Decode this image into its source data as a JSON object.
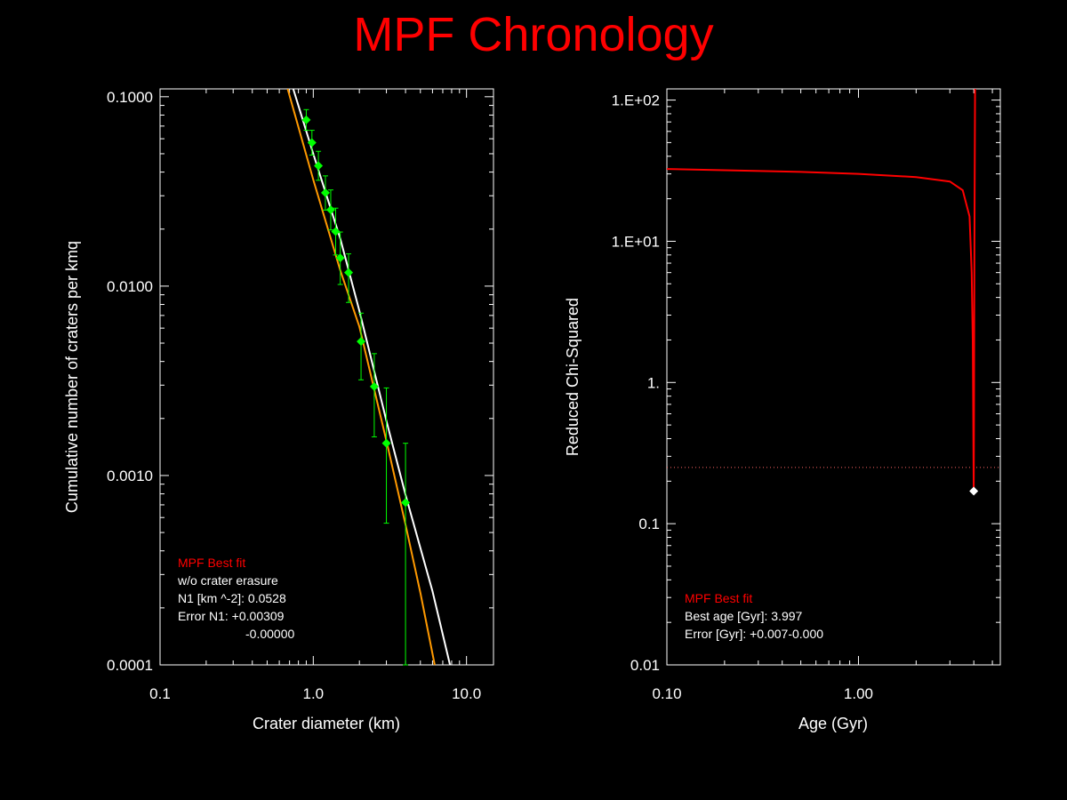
{
  "title": "MPF Chronology",
  "chart_data": [
    {
      "type": "scatter",
      "xlabel": "Crater diameter (km)",
      "ylabel": "Cumulative number of craters per kmq",
      "xscale": "log",
      "yscale": "log",
      "xlim": [
        0.1,
        15
      ],
      "ylim": [
        0.0001,
        0.11
      ],
      "xticks": [
        {
          "v": 0.1,
          "label": "0.1"
        },
        {
          "v": 1,
          "label": "1.0"
        },
        {
          "v": 10,
          "label": "10.0"
        }
      ],
      "yticks": [
        {
          "v": 0.0001,
          "label": "0.0001"
        },
        {
          "v": 0.001,
          "label": "0.0010"
        },
        {
          "v": 0.01,
          "label": "0.0100"
        },
        {
          "v": 0.1,
          "label": "0.1000"
        }
      ],
      "series": [
        {
          "kind": "points",
          "color": "#00ff00",
          "points": [
            {
              "x": 0.9,
              "y": 0.0755,
              "ylo": 0.0665,
              "yhi": 0.0855
            },
            {
              "x": 0.98,
              "y": 0.0572,
              "ylo": 0.0492,
              "yhi": 0.0665
            },
            {
              "x": 1.08,
              "y": 0.0432,
              "ylo": 0.0362,
              "yhi": 0.0515
            },
            {
              "x": 1.2,
              "y": 0.0311,
              "ylo": 0.0252,
              "yhi": 0.0382
            },
            {
              "x": 1.3,
              "y": 0.0253,
              "ylo": 0.0198,
              "yhi": 0.0322
            },
            {
              "x": 1.4,
              "y": 0.0194,
              "ylo": 0.0146,
              "yhi": 0.0258
            },
            {
              "x": 1.5,
              "y": 0.0141,
              "ylo": 0.0102,
              "yhi": 0.0193
            },
            {
              "x": 1.7,
              "y": 0.0118,
              "ylo": 0.0082,
              "yhi": 0.0148
            },
            {
              "x": 2.05,
              "y": 0.0051,
              "ylo": 0.0032,
              "yhi": 0.0072
            },
            {
              "x": 2.5,
              "y": 0.00295,
              "ylo": 0.0016,
              "yhi": 0.0044
            },
            {
              "x": 3.0,
              "y": 0.00148,
              "ylo": 0.00056,
              "yhi": 0.0029
            },
            {
              "x": 4.0,
              "y": 0.00072,
              "ylo": 0.0001,
              "yhi": 0.00148
            }
          ]
        },
        {
          "kind": "line",
          "color": "#ffffff",
          "points": [
            [
              0.74,
              0.11
            ],
            [
              1.0,
              0.05
            ],
            [
              1.5,
              0.0178
            ],
            [
              2.0,
              0.0074
            ],
            [
              3.0,
              0.00195
            ],
            [
              4.0,
              0.00079
            ],
            [
              6.0,
              0.000245
            ],
            [
              7.8,
              0.0001
            ]
          ]
        },
        {
          "kind": "line",
          "color": "#ff9900",
          "points": [
            [
              0.68,
              0.11
            ],
            [
              1.0,
              0.0365
            ],
            [
              1.5,
              0.0121
            ],
            [
              2.0,
              0.0061
            ],
            [
              3.0,
              0.00153
            ],
            [
              4.0,
              0.00055
            ],
            [
              5.0,
              0.00024
            ],
            [
              6.2,
              0.0001
            ]
          ]
        }
      ],
      "legend": {
        "title": "MPF Best fit",
        "lines": [
          "w/o crater erasure",
          "N1 [km ^-2]: 0.0528",
          "Error N1: +0.00309",
          "-0.00000"
        ]
      }
    },
    {
      "type": "line",
      "xlabel": "Age (Gyr)",
      "ylabel": "Reduced Chi-Squared",
      "xscale": "log",
      "yscale": "log",
      "xlim": [
        0.1,
        5.5
      ],
      "ylim": [
        0.01,
        120
      ],
      "xticks": [
        {
          "v": 0.1,
          "label": "0.10"
        },
        {
          "v": 1,
          "label": "1.00"
        }
      ],
      "yticks": [
        {
          "v": 0.01,
          "label": "0.01"
        },
        {
          "v": 0.1,
          "label": "0.1"
        },
        {
          "v": 1,
          "label": "1."
        },
        {
          "v": 10,
          "label": "1.E+01"
        },
        {
          "v": 100,
          "label": "1.E+02"
        }
      ],
      "series": [
        {
          "kind": "line",
          "color": "#ff0000",
          "points": [
            [
              0.1,
              32.5
            ],
            [
              0.5,
              31.0
            ],
            [
              1.0,
              30.0
            ],
            [
              2.0,
              28.5
            ],
            [
              3.0,
              26.5
            ],
            [
              3.5,
              23.0
            ],
            [
              3.8,
              15.0
            ],
            [
              3.9,
              6.0
            ],
            [
              3.95,
              2.0
            ],
            [
              3.985,
              0.32
            ],
            [
              3.997,
              0.17
            ],
            [
              4.01,
              0.6
            ],
            [
              4.03,
              10.0
            ],
            [
              4.06,
              120.0
            ]
          ]
        }
      ],
      "reference_line": {
        "y": 0.25,
        "style": "dotted",
        "color": "#ff6666"
      },
      "best_point": {
        "x": 3.997,
        "y": 0.17,
        "color": "#ffffff"
      },
      "legend": {
        "title": "MPF Best fit",
        "lines": [
          "Best age [Gyr]: 3.997",
          "Error [Gyr]: +0.007-0.000"
        ]
      }
    }
  ]
}
